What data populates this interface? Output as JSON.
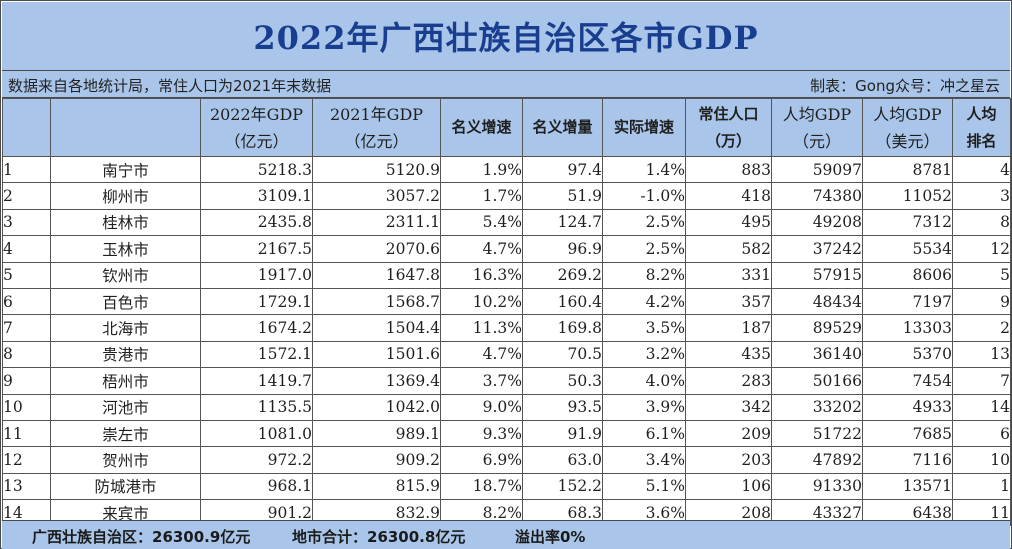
{
  "title": "2022年广西壮族自治区各市GDP",
  "info": {
    "left": "数据来自各地统计局，常住人口为2021年末数据",
    "right": "制表：Gong众号：冲之星云"
  },
  "headers": [
    {
      "l1": "",
      "l2": ""
    },
    {
      "l1": "",
      "l2": ""
    },
    {
      "l1": "2022年GDP",
      "l2": "（亿元）"
    },
    {
      "l1": "2021年GDP",
      "l2": "（亿元）"
    },
    {
      "l1": "名义增速",
      "l2": ""
    },
    {
      "l1": "名义增量",
      "l2": ""
    },
    {
      "l1": "实际增速",
      "l2": ""
    },
    {
      "l1": "常住人口",
      "l2": "（万）"
    },
    {
      "l1": "人均GDP",
      "l2": "（元）"
    },
    {
      "l1": "人均GDP",
      "l2": "（美元）"
    },
    {
      "l1": "人均",
      "l2": "排名"
    }
  ],
  "rows": [
    [
      "1",
      "南宁市",
      "5218.3",
      "5120.9",
      "1.9%",
      "97.4",
      "1.4%",
      "883",
      "59097",
      "8781",
      "4"
    ],
    [
      "2",
      "柳州市",
      "3109.1",
      "3057.2",
      "1.7%",
      "51.9",
      "-1.0%",
      "418",
      "74380",
      "11052",
      "3"
    ],
    [
      "3",
      "桂林市",
      "2435.8",
      "2311.1",
      "5.4%",
      "124.7",
      "2.5%",
      "495",
      "49208",
      "7312",
      "8"
    ],
    [
      "4",
      "玉林市",
      "2167.5",
      "2070.6",
      "4.7%",
      "96.9",
      "2.5%",
      "582",
      "37242",
      "5534",
      "12"
    ],
    [
      "5",
      "钦州市",
      "1917.0",
      "1647.8",
      "16.3%",
      "269.2",
      "8.2%",
      "331",
      "57915",
      "8606",
      "5"
    ],
    [
      "6",
      "百色市",
      "1729.1",
      "1568.7",
      "10.2%",
      "160.4",
      "4.2%",
      "357",
      "48434",
      "7197",
      "9"
    ],
    [
      "7",
      "北海市",
      "1674.2",
      "1504.4",
      "11.3%",
      "169.8",
      "3.5%",
      "187",
      "89529",
      "13303",
      "2"
    ],
    [
      "8",
      "贵港市",
      "1572.1",
      "1501.6",
      "4.7%",
      "70.5",
      "3.2%",
      "435",
      "36140",
      "5370",
      "13"
    ],
    [
      "9",
      "梧州市",
      "1419.7",
      "1369.4",
      "3.7%",
      "50.3",
      "4.0%",
      "283",
      "50166",
      "7454",
      "7"
    ],
    [
      "10",
      "河池市",
      "1135.5",
      "1042.0",
      "9.0%",
      "93.5",
      "3.9%",
      "342",
      "33202",
      "4933",
      "14"
    ],
    [
      "11",
      "崇左市",
      "1081.0",
      "989.1",
      "9.3%",
      "91.9",
      "6.1%",
      "209",
      "51722",
      "7685",
      "6"
    ],
    [
      "12",
      "贺州市",
      "972.2",
      "909.2",
      "6.9%",
      "63.0",
      "3.4%",
      "203",
      "47892",
      "7116",
      "10"
    ],
    [
      "13",
      "防城港市",
      "968.1",
      "815.9",
      "18.7%",
      "152.2",
      "5.1%",
      "106",
      "91330",
      "13571",
      "1"
    ],
    [
      "14",
      "来宾市",
      "901.2",
      "832.9",
      "8.2%",
      "68.3",
      "3.6%",
      "208",
      "43327",
      "6438",
      "11"
    ]
  ],
  "footer": {
    "region": "广西壮族自治区：26300.9亿元",
    "cities": "地市合计：26300.8亿元",
    "overflow": "溢出率0%"
  }
}
